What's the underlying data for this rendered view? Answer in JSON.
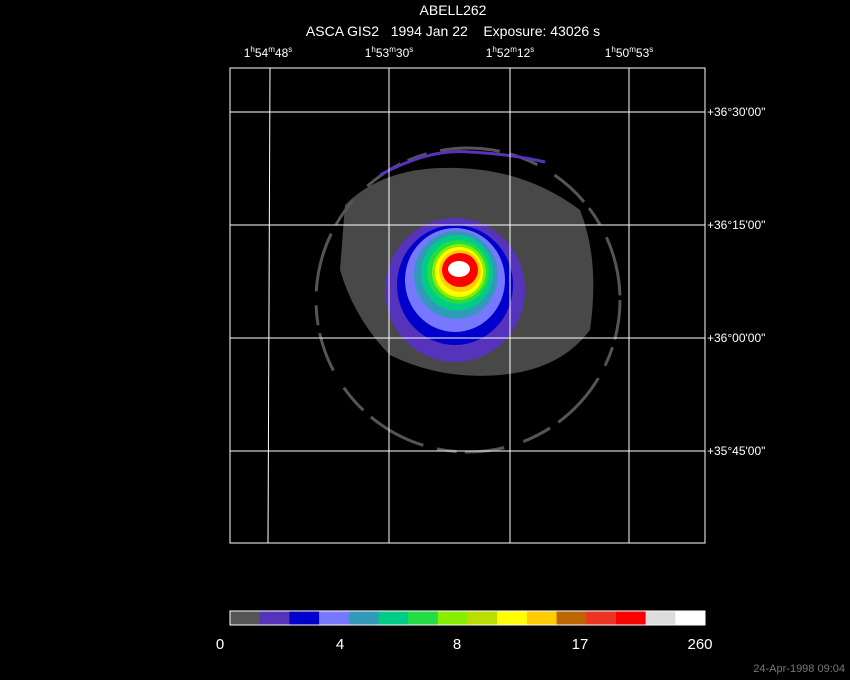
{
  "header": {
    "title": "ABELL262",
    "subtitle": "ASCA GIS2   1994 Jan 22    Exposure: 43026 s"
  },
  "ra_labels": [
    [
      "1",
      "h",
      "54",
      "m",
      "48",
      "s"
    ],
    [
      "1",
      "h",
      "53",
      "m",
      "30",
      "s"
    ],
    [
      "1",
      "h",
      "52",
      "m",
      "12",
      "s"
    ],
    [
      "1",
      "h",
      "50",
      "m",
      "53",
      "s"
    ]
  ],
  "dec_labels": [
    "+36°30'00\"",
    "+36°15'00\"",
    "+36°00'00\"",
    "+35°45'00\""
  ],
  "colorbar": {
    "colors": [
      "#555555",
      "#5533bb",
      "#0000cc",
      "#7777ff",
      "#3399bb",
      "#00cc88",
      "#22dd44",
      "#88ee00",
      "#bbdd00",
      "#ffff00",
      "#ffcc00",
      "#bb6600",
      "#ee3322",
      "#ff0000",
      "#dddddd",
      "#ffffff"
    ],
    "labels": [
      "0",
      "4",
      "8",
      "17",
      "260"
    ]
  },
  "timestamp": "24-Apr-1998 09:04"
}
